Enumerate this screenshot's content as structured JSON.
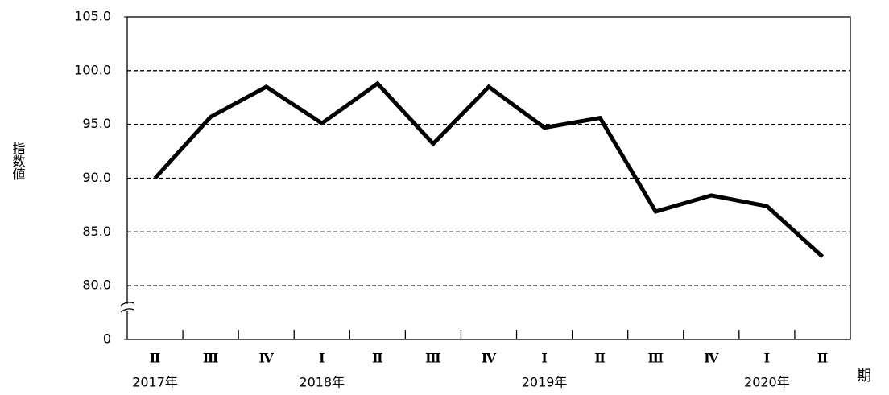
{
  "chart_data": {
    "type": "line",
    "y_label": "指数値",
    "x_label": "期",
    "categories": [
      "Ⅱ",
      "Ⅲ",
      "Ⅳ",
      "Ⅰ",
      "Ⅱ",
      "Ⅲ",
      "Ⅳ",
      "Ⅰ",
      "Ⅱ",
      "Ⅲ",
      "Ⅳ",
      "Ⅰ",
      "Ⅱ"
    ],
    "year_labels": [
      "2017年",
      null,
      null,
      "2018年",
      null,
      null,
      null,
      "2019年",
      null,
      null,
      null,
      "2020年",
      null
    ],
    "values": [
      90.0,
      95.7,
      98.5,
      95.1,
      98.8,
      93.2,
      98.5,
      94.7,
      95.6,
      86.9,
      88.4,
      87.4,
      82.7
    ],
    "color": "#000000",
    "ylim": [
      0,
      105
    ],
    "y_break": [
      0,
      80
    ],
    "yticks": [
      0,
      {
        "value": 80,
        "label": "80.0"
      },
      {
        "value": 85,
        "label": "85.0"
      },
      {
        "value": 90,
        "label": "90.0"
      },
      {
        "value": 95,
        "label": "95.0"
      },
      {
        "value": 100,
        "label": "100.0"
      },
      {
        "value": 105,
        "label": "105.0"
      }
    ],
    "grid": true
  }
}
